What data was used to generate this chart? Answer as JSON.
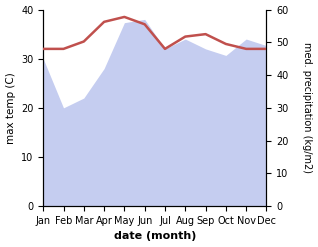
{
  "months": [
    "Jan",
    "Feb",
    "Mar",
    "Apr",
    "May",
    "Jun",
    "Jul",
    "Aug",
    "Sep",
    "Oct",
    "Nov",
    "Dec"
  ],
  "month_positions": [
    0,
    1,
    2,
    3,
    4,
    5,
    6,
    7,
    8,
    9,
    10,
    11
  ],
  "temperature": [
    32,
    32,
    33.5,
    37.5,
    38.5,
    37.0,
    32,
    34.5,
    35,
    33,
    32,
    32
  ],
  "precipitation": [
    45,
    30,
    33,
    42,
    56,
    57,
    48,
    51,
    48,
    46,
    51,
    49
  ],
  "temp_color": "#c0504d",
  "precip_fill_color": "#c5cdf0",
  "background_color": "#ffffff",
  "xlabel": "date (month)",
  "ylabel_left": "max temp (C)",
  "ylabel_right": "med. precipitation (kg/m2)",
  "ylim_left": [
    0,
    40
  ],
  "ylim_right": [
    0,
    60
  ],
  "yticks_left": [
    0,
    10,
    20,
    30,
    40
  ],
  "yticks_right": [
    0,
    10,
    20,
    30,
    40,
    50,
    60
  ],
  "temp_linewidth": 1.8
}
